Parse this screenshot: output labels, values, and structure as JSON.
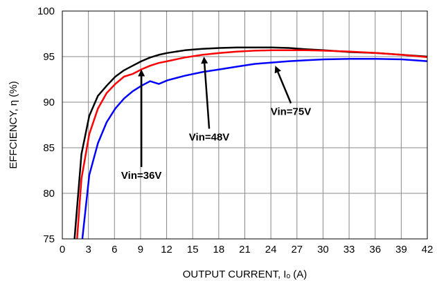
{
  "chart_data": {
    "type": "line",
    "title": "",
    "xlabel": "OUTPUT CURRENT, Iₒ (A)",
    "ylabel": "EFFCIENCY, η (%)",
    "xlim": [
      0,
      42
    ],
    "ylim": [
      75,
      100
    ],
    "xticks": [
      0,
      3,
      6,
      9,
      12,
      15,
      18,
      21,
      24,
      27,
      30,
      33,
      36,
      39,
      42
    ],
    "yticks": [
      75,
      80,
      85,
      90,
      95,
      100
    ],
    "grid": true,
    "series": [
      {
        "name": "Vin=36V",
        "color": "#000000",
        "x": [
          1.4,
          2.2,
          3.1,
          4.1,
          5.1,
          6.1,
          7.1,
          8.1,
          9.1,
          10.1,
          11.1,
          12.1,
          14.1,
          16.1,
          18.1,
          20.1,
          22.1,
          24.1,
          26.1,
          28.1,
          30.1,
          33.1,
          36.1,
          39.1,
          42
        ],
        "y": [
          75,
          84.3,
          88.5,
          90.7,
          91.8,
          92.8,
          93.5,
          94.0,
          94.5,
          94.9,
          95.2,
          95.4,
          95.7,
          95.85,
          95.95,
          96.0,
          96.0,
          96.0,
          95.95,
          95.8,
          95.7,
          95.5,
          95.4,
          95.2,
          95.0
        ]
      },
      {
        "name": "Vin=48V",
        "color": "#ff0000",
        "x": [
          1.7,
          2.2,
          3.1,
          4.1,
          5.1,
          6.1,
          7.1,
          8.1,
          9.1,
          10.1,
          11.1,
          12.1,
          14.1,
          16.1,
          18.1,
          20.1,
          22.1,
          24.1,
          26.1,
          28.1,
          30.1,
          33.1,
          36.1,
          39.1,
          42
        ],
        "y": [
          75,
          81.6,
          86.5,
          89.3,
          91.0,
          92.0,
          92.8,
          93.1,
          93.6,
          94.0,
          94.3,
          94.5,
          94.9,
          95.2,
          95.4,
          95.55,
          95.65,
          95.7,
          95.7,
          95.7,
          95.65,
          95.55,
          95.4,
          95.2,
          94.95
        ]
      },
      {
        "name": "Vin=75V",
        "color": "#0000ff",
        "x": [
          2.3,
          3.1,
          4.1,
          5.1,
          6.1,
          7.1,
          8.1,
          9.1,
          10.1,
          11.1,
          12.1,
          14.1,
          16.1,
          18.1,
          20.1,
          22.1,
          24.1,
          26.1,
          28.1,
          30.1,
          33.1,
          36.1,
          39.1,
          42
        ],
        "y": [
          75,
          82.0,
          85.5,
          87.8,
          89.3,
          90.4,
          91.2,
          91.8,
          92.3,
          92.0,
          92.4,
          92.9,
          93.3,
          93.6,
          93.9,
          94.2,
          94.35,
          94.5,
          94.6,
          94.7,
          94.75,
          94.75,
          94.7,
          94.5
        ]
      }
    ],
    "annotations": [
      {
        "text": "Vin=36V",
        "text_x": 9.1,
        "text_y": 81.6,
        "arrow_to": [
          9.1,
          93.6
        ]
      },
      {
        "text": "Vin=48V",
        "text_x": 16.9,
        "text_y": 85.8,
        "arrow_to": [
          16.3,
          95.0
        ]
      },
      {
        "text": "Vin=75V",
        "text_x": 26.3,
        "text_y": 88.6,
        "arrow_to": [
          24.5,
          94.0
        ]
      }
    ]
  }
}
